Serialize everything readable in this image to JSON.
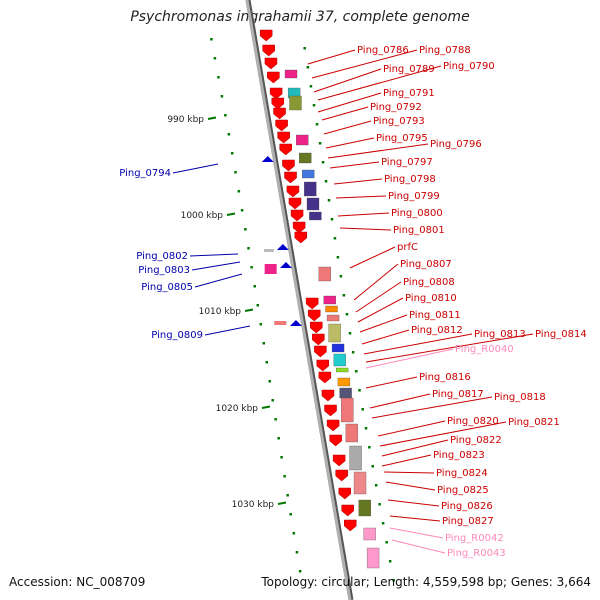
{
  "title": "Psychromonas ingrahamii 37, complete genome",
  "accession_text": "Accession: NC_008709",
  "summary_text": "Topology: circular; Length: 4,559,598 bp; Genes: 3,664",
  "colors": {
    "backbone": "#8a8a8a",
    "forward_gene": "#ff0000",
    "reverse_gene": "#0000cc",
    "label_forward": "#cc0000",
    "label_reverse": "#0000aa",
    "label_rna": "#ff88bb",
    "tick": "#007700"
  },
  "scale_marks": [
    {
      "label": "990 kbp"
    },
    {
      "label": "1000 kbp"
    },
    {
      "label": "1010 kbp"
    },
    {
      "label": "1020 kbp"
    },
    {
      "label": "1030 kbp"
    }
  ],
  "right_labels": [
    {
      "text": "Ping_0786"
    },
    {
      "text": "Ping_0788"
    },
    {
      "text": "Ping_0789"
    },
    {
      "text": "Ping_0790"
    },
    {
      "text": "Ping_0791"
    },
    {
      "text": "Ping_0792"
    },
    {
      "text": "Ping_0793"
    },
    {
      "text": "Ping_0795"
    },
    {
      "text": "Ping_0796"
    },
    {
      "text": "Ping_0797"
    },
    {
      "text": "Ping_0798"
    },
    {
      "text": "Ping_0799"
    },
    {
      "text": "Ping_0800"
    },
    {
      "text": "Ping_0801"
    },
    {
      "text": "prfC"
    },
    {
      "text": "Ping_0807"
    },
    {
      "text": "Ping_0808"
    },
    {
      "text": "Ping_0810"
    },
    {
      "text": "Ping_0811"
    },
    {
      "text": "Ping_0812"
    },
    {
      "text": "Ping_0813"
    },
    {
      "text": "Ping_0814"
    },
    {
      "text": "Ping_R0040",
      "rna": true
    },
    {
      "text": "Ping_0816"
    },
    {
      "text": "Ping_0817"
    },
    {
      "text": "Ping_0818"
    },
    {
      "text": "Ping_0820"
    },
    {
      "text": "Ping_0821"
    },
    {
      "text": "Ping_0822"
    },
    {
      "text": "Ping_0823"
    },
    {
      "text": "Ping_0824"
    },
    {
      "text": "Ping_0825"
    },
    {
      "text": "Ping_0826"
    },
    {
      "text": "Ping_0827"
    },
    {
      "text": "Ping_R0042",
      "rna": true
    },
    {
      "text": "Ping_R0043",
      "rna": true
    }
  ],
  "left_labels": [
    {
      "text": "Ping_0794"
    },
    {
      "text": "Ping_0802"
    },
    {
      "text": "Ping_0803"
    },
    {
      "text": "Ping_0805"
    },
    {
      "text": "Ping_0809"
    }
  ]
}
